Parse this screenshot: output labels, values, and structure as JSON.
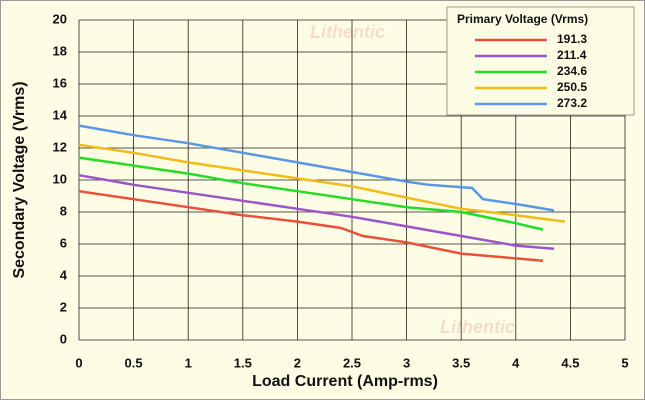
{
  "chart_data": {
    "type": "line",
    "xlabel": "Load Current (Amp-rms)",
    "ylabel": "Secondary Voltage (Vrms)",
    "legend_title": "Primary Voltage (Vrms)",
    "legend_loc": "upper right",
    "grid": true,
    "watermark": "Lithentic",
    "xlim": [
      0,
      5
    ],
    "xticks": [
      0,
      0.5,
      1,
      1.5,
      2,
      2.5,
      3,
      3.5,
      4,
      4.5,
      5
    ],
    "ylim": [
      0,
      20
    ],
    "yticks": [
      0,
      2,
      4,
      6,
      8,
      10,
      12,
      14,
      16,
      18,
      20
    ],
    "series": [
      {
        "name": "191.3",
        "color": "#e8503a",
        "x": [
          0,
          0.5,
          1,
          1.5,
          2,
          2.4,
          2.6,
          3,
          3.5,
          4,
          4.25
        ],
        "values": [
          9.3,
          8.8,
          8.3,
          7.8,
          7.4,
          7.0,
          6.5,
          6.1,
          5.4,
          5.1,
          4.95
        ]
      },
      {
        "name": "211.4",
        "color": "#9b55c8",
        "x": [
          0,
          0.5,
          1,
          1.5,
          2,
          2.5,
          3,
          3.5,
          4,
          4.35
        ],
        "values": [
          10.3,
          9.7,
          9.2,
          8.7,
          8.2,
          7.7,
          7.1,
          6.5,
          5.9,
          5.7
        ]
      },
      {
        "name": "234.6",
        "color": "#22dd22",
        "x": [
          0,
          0.5,
          1,
          1.5,
          2,
          2.5,
          3,
          3.5,
          4,
          4.25
        ],
        "values": [
          11.4,
          10.9,
          10.4,
          9.8,
          9.3,
          8.8,
          8.3,
          8.0,
          7.3,
          6.9
        ]
      },
      {
        "name": "250.5",
        "color": "#f2bb1a",
        "x": [
          0,
          0.5,
          1,
          1.5,
          2,
          2.5,
          3,
          3.5,
          4,
          4.45
        ],
        "values": [
          12.2,
          11.7,
          11.1,
          10.6,
          10.1,
          9.6,
          8.9,
          8.2,
          7.8,
          7.4
        ]
      },
      {
        "name": "273.2",
        "color": "#5b96e6",
        "x": [
          0,
          0.5,
          1,
          1.5,
          2,
          2.5,
          3,
          3.2,
          3.6,
          3.7,
          4,
          4.35
        ],
        "values": [
          13.4,
          12.8,
          12.3,
          11.7,
          11.1,
          10.5,
          9.9,
          9.7,
          9.5,
          8.8,
          8.5,
          8.1
        ]
      }
    ]
  }
}
